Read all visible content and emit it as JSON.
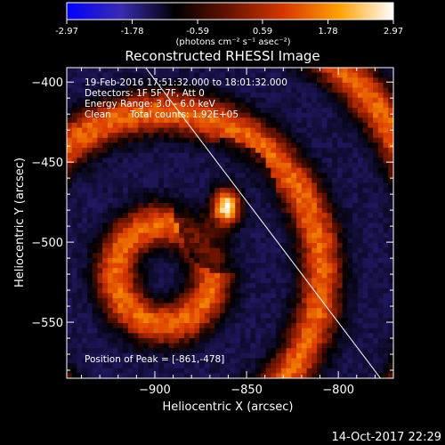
{
  "colorbar": {
    "ticks": [
      "-2.97",
      "-1.78",
      "-0.59",
      "0.59",
      "1.78",
      "2.97"
    ],
    "tick_values": [
      -2.97,
      -1.78,
      -0.59,
      0.59,
      1.78,
      2.97
    ],
    "unit_label": "(photons cm⁻² s⁻¹ asec⁻²)",
    "stops": [
      "#0000ff",
      "#3a2bb0",
      "#000000",
      "#6a1400",
      "#d83800",
      "#ffa000",
      "#ffffff"
    ]
  },
  "annotation": {
    "line1": "19-Feb-2016 17:51:32.000 to 18:01:32.000",
    "line2": "Detectors: 1F 5F 7F, Att 0",
    "line3": "Energy Range: 3.0 - 6.0 keV",
    "line4_left": "Clean",
    "line4_right": "Total counts: 1.92E+05",
    "peak": "Position of Peak = [-861,-478]"
  },
  "footer": {
    "timestamp": "14-Oct-2017 22:29"
  },
  "chart_data": {
    "type": "heatmap",
    "title": "Reconstructed RHESSI Image",
    "xlabel": "Heliocentric X (arcsec)",
    "ylabel": "Heliocentric Y (arcsec)",
    "xlim": [
      -948,
      -770
    ],
    "ylim": [
      -585,
      -391
    ],
    "xticks": [
      -900,
      -850,
      -800
    ],
    "yticks": [
      -400,
      -450,
      -500,
      -550
    ],
    "xtick_labels": [
      "−900",
      "−850",
      "−800"
    ],
    "ytick_labels": [
      "−400",
      "−450",
      "−500",
      "−550"
    ],
    "peak": {
      "x": -861,
      "y": -478
    },
    "limb_line": [
      [
        -905,
        -391
      ],
      [
        -777,
        -585
      ]
    ]
  }
}
